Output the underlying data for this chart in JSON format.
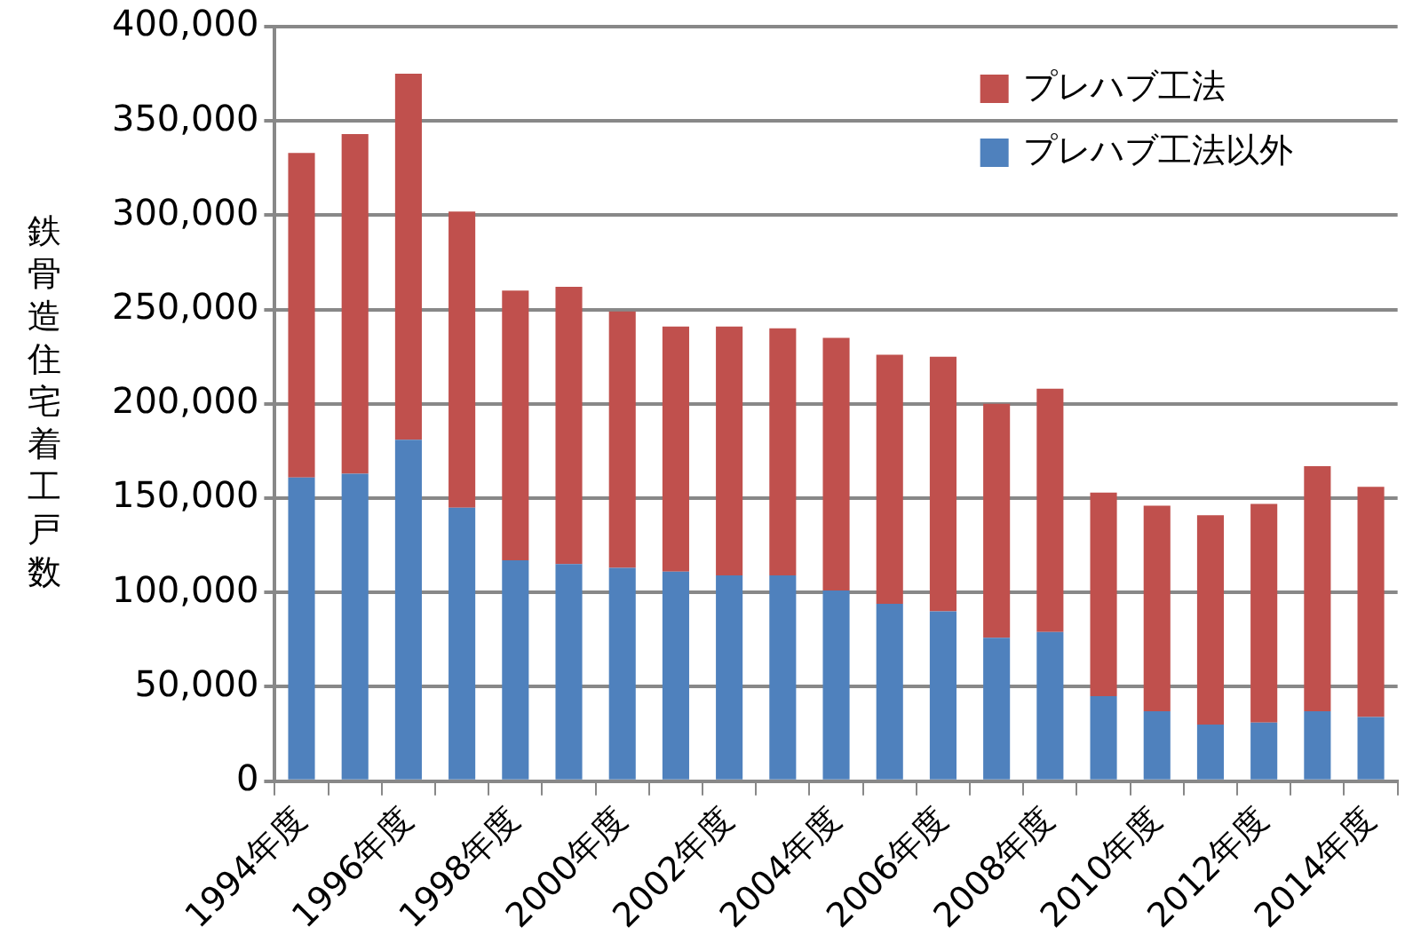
{
  "chart_data": {
    "type": "bar",
    "stacked": true,
    "ylabel": "鉄骨造住宅着工戸数",
    "categories": [
      "1994年度",
      null,
      "1996年度",
      null,
      "1998年度",
      null,
      "2000年度",
      null,
      "2002年度",
      null,
      "2004年度",
      null,
      "2006年度",
      null,
      "2008年度",
      null,
      "2010年度",
      null,
      "2012年度",
      null,
      "2014年度"
    ],
    "series": [
      {
        "name": "プレハブ工法以外",
        "color": "#4f81bd",
        "values": [
          161000,
          163000,
          181000,
          145000,
          117000,
          115000,
          113000,
          111000,
          109000,
          109000,
          101000,
          94000,
          90000,
          76000,
          79000,
          45000,
          37000,
          30000,
          31000,
          37000,
          34000
        ]
      },
      {
        "name": "プレハブ工法",
        "color": "#c0504d",
        "values": [
          172000,
          180000,
          194000,
          157000,
          143000,
          147000,
          136000,
          130000,
          132000,
          131000,
          134000,
          132000,
          135000,
          124000,
          129000,
          108000,
          109000,
          111000,
          116000,
          130000,
          122000
        ]
      }
    ],
    "ylim": [
      0,
      400000
    ],
    "yticks": [
      {
        "value": 0,
        "label": "0"
      },
      {
        "value": 50000,
        "label": "50,000"
      },
      {
        "value": 100000,
        "label": "100,000"
      },
      {
        "value": 150000,
        "label": "150,000"
      },
      {
        "value": 200000,
        "label": "200,000"
      },
      {
        "value": 250000,
        "label": "250,000"
      },
      {
        "value": 300000,
        "label": "300,000"
      },
      {
        "value": 350000,
        "label": "350,000"
      },
      {
        "value": 400000,
        "label": "400,000"
      }
    ],
    "grid": "y",
    "legend": "top right"
  }
}
